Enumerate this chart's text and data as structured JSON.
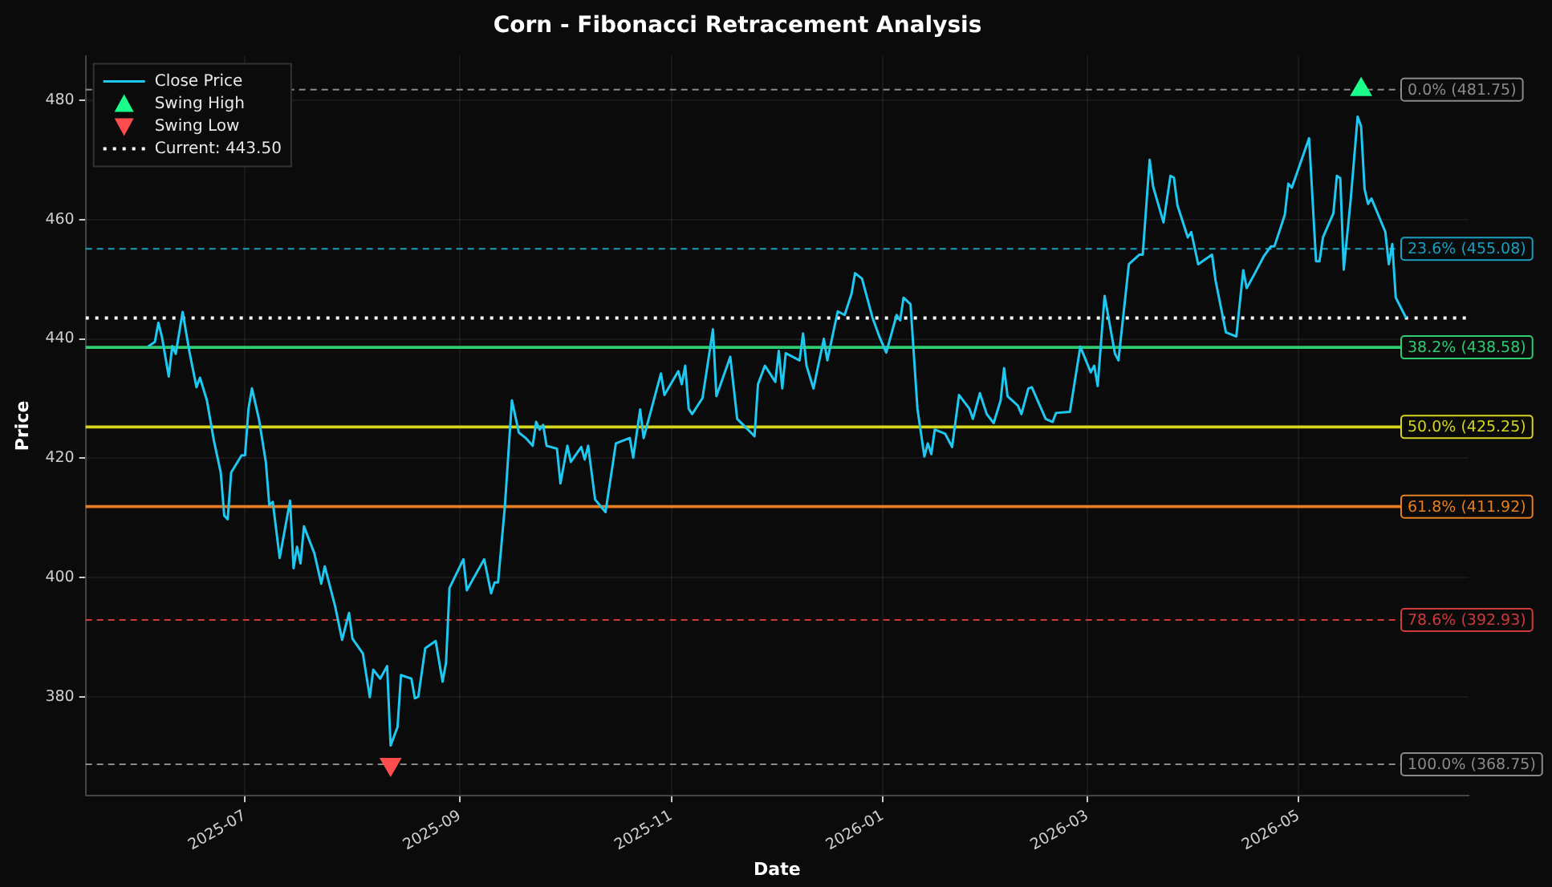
{
  "chart_data": {
    "type": "line",
    "title": "Corn - Fibonacci Retracement Analysis",
    "xlabel": "Date",
    "ylabel": "Price",
    "xlim": [
      "2025-05-16",
      "2026-06-19"
    ],
    "ylim": [
      363.5,
      487.4
    ],
    "xticks": [
      "2025-07",
      "2025-09",
      "2025-11",
      "2026-01",
      "2026-03",
      "2026-05"
    ],
    "yticks": [
      380,
      400,
      420,
      440,
      460,
      480
    ],
    "grid": true,
    "legend": "top left",
    "series": [
      {
        "name": "Close Price",
        "type": "line",
        "color": "#1ec8f0",
        "marker": "none",
        "line_style": "solid",
        "x": [
          "2025-06-03",
          "2025-06-05",
          "2025-06-06",
          "2025-06-07",
          "2025-06-09",
          "2025-06-10",
          "2025-06-11",
          "2025-06-13",
          "2025-06-15",
          "2025-06-17",
          "2025-06-18",
          "2025-06-20",
          "2025-06-22",
          "2025-06-24",
          "2025-06-25",
          "2025-06-26",
          "2025-06-27",
          "2025-06-30",
          "2025-07-01",
          "2025-07-02",
          "2025-07-03",
          "2025-07-05",
          "2025-07-07",
          "2025-07-08",
          "2025-07-09",
          "2025-07-11",
          "2025-07-14",
          "2025-07-15",
          "2025-07-16",
          "2025-07-17",
          "2025-07-18",
          "2025-07-21",
          "2025-07-23",
          "2025-07-24",
          "2025-07-27",
          "2025-07-29",
          "2025-07-31",
          "2025-08-01",
          "2025-08-04",
          "2025-08-06",
          "2025-08-07",
          "2025-08-09",
          "2025-08-11",
          "2025-08-12",
          "2025-08-14",
          "2025-08-15",
          "2025-08-18",
          "2025-08-19",
          "2025-08-20",
          "2025-08-22",
          "2025-08-25",
          "2025-08-27",
          "2025-08-28",
          "2025-08-29",
          "2025-09-02",
          "2025-09-03",
          "2025-09-05",
          "2025-09-08",
          "2025-09-10",
          "2025-09-11",
          "2025-09-12",
          "2025-09-14",
          "2025-09-16",
          "2025-09-18",
          "2025-09-20",
          "2025-09-22",
          "2025-09-23",
          "2025-09-24",
          "2025-09-25",
          "2025-09-26",
          "2025-09-29",
          "2025-09-30",
          "2025-10-02",
          "2025-10-03",
          "2025-10-06",
          "2025-10-07",
          "2025-10-08",
          "2025-10-10",
          "2025-10-13",
          "2025-10-16",
          "2025-10-20",
          "2025-10-21",
          "2025-10-23",
          "2025-10-24",
          "2025-10-29",
          "2025-10-30",
          "2025-11-03",
          "2025-11-04",
          "2025-11-05",
          "2025-11-06",
          "2025-11-07",
          "2025-11-10",
          "2025-11-13",
          "2025-11-14",
          "2025-11-18",
          "2025-11-20",
          "2025-11-25",
          "2025-11-26",
          "2025-11-28",
          "2025-12-01",
          "2025-12-02",
          "2025-12-03",
          "2025-12-04",
          "2025-12-08",
          "2025-12-09",
          "2025-12-10",
          "2025-12-12",
          "2025-12-15",
          "2025-12-16",
          "2025-12-19",
          "2025-12-21",
          "2025-12-23",
          "2025-12-24",
          "2025-12-26",
          "2025-12-29",
          "2025-12-31",
          "2026-01-02",
          "2026-01-05",
          "2026-01-06",
          "2026-01-07",
          "2026-01-09",
          "2026-01-11",
          "2026-01-13",
          "2026-01-14",
          "2026-01-15",
          "2026-01-16",
          "2026-01-19",
          "2026-01-21",
          "2026-01-23",
          "2026-01-26",
          "2026-01-27",
          "2026-01-29",
          "2026-01-31",
          "2026-02-02",
          "2026-02-04",
          "2026-02-05",
          "2026-02-06",
          "2026-02-09",
          "2026-02-10",
          "2026-02-12",
          "2026-02-13",
          "2026-02-17",
          "2026-02-19",
          "2026-02-20",
          "2026-02-24",
          "2026-02-27",
          "2026-03-02",
          "2026-03-03",
          "2026-03-04",
          "2026-03-06",
          "2026-03-09",
          "2026-03-10",
          "2026-03-13",
          "2026-03-16",
          "2026-03-17",
          "2026-03-19",
          "2026-03-20",
          "2026-03-23",
          "2026-03-25",
          "2026-03-26",
          "2026-03-27",
          "2026-03-30",
          "2026-03-31",
          "2026-04-02",
          "2026-04-06",
          "2026-04-07",
          "2026-04-10",
          "2026-04-13",
          "2026-04-15",
          "2026-04-16",
          "2026-04-18",
          "2026-04-21",
          "2026-04-23",
          "2026-04-24",
          "2026-04-27",
          "2026-04-28",
          "2026-04-29",
          "2026-05-04",
          "2026-05-06",
          "2026-05-07",
          "2026-05-08",
          "2026-05-11",
          "2026-05-12",
          "2026-05-13",
          "2026-05-14",
          "2026-05-16",
          "2026-05-18",
          "2026-05-19",
          "2026-05-20",
          "2026-05-21",
          "2026-05-22",
          "2026-05-26",
          "2026-05-27",
          "2026-05-28",
          "2026-05-29",
          "2026-06-01"
        ],
        "values": [
          438.7,
          439.5,
          442.7,
          440.4,
          433.7,
          438.8,
          437.5,
          444.5,
          437.7,
          431.9,
          433.5,
          429.7,
          423,
          417.6,
          410.4,
          409.8,
          417.6,
          420.5,
          420.5,
          428.3,
          431.7,
          426.6,
          419.4,
          412.2,
          412.7,
          403.3,
          412.9,
          401.6,
          405.2,
          402.4,
          408.6,
          404.1,
          399,
          401.9,
          395.2,
          389.6,
          394.1,
          389.8,
          387.3,
          380,
          384.6,
          383.1,
          385.2,
          371.9,
          375,
          383.7,
          383.1,
          379.8,
          380.1,
          388.2,
          389.4,
          382.6,
          385.8,
          398.3,
          403.1,
          397.9,
          400,
          403.1,
          397.4,
          399.2,
          399.2,
          412.2,
          429.7,
          424.3,
          423.4,
          422.1,
          426.1,
          424.8,
          425.6,
          422.1,
          421.6,
          415.8,
          422.1,
          419.4,
          421.9,
          419.8,
          422.1,
          413.1,
          411,
          422.5,
          423.4,
          420.1,
          428.2,
          423.4,
          434.2,
          430.6,
          434.6,
          432.4,
          435.5,
          428.3,
          427.4,
          430.1,
          441.6,
          430.4,
          437,
          426.6,
          423.7,
          432.4,
          435.5,
          432.8,
          438,
          431.7,
          437.6,
          436.4,
          440.9,
          435.5,
          431.7,
          440,
          436.4,
          444.6,
          444,
          447.6,
          451,
          450.1,
          443.6,
          440.4,
          437.7,
          444,
          443.1,
          446.9,
          445.8,
          428.3,
          420.3,
          422.5,
          420.7,
          424.8,
          424.1,
          421.9,
          430.6,
          428.3,
          426.6,
          430.9,
          427.4,
          425.9,
          429.7,
          435.1,
          430.4,
          428.8,
          427.4,
          431.7,
          431.9,
          426.6,
          426.1,
          427.6,
          427.8,
          438.7,
          434.4,
          435.5,
          432.1,
          447.2,
          437.5,
          436.4,
          452.5,
          454.1,
          454.1,
          470,
          465.5,
          459.5,
          467.3,
          467,
          462.4,
          457,
          457.9,
          452.5,
          454.1,
          449.8,
          441.1,
          440.4,
          451.5,
          448.5,
          450.6,
          453.9,
          455.5,
          455.5,
          460.8,
          466,
          465.3,
          473.6,
          453,
          453,
          457,
          461,
          467.3,
          466.9,
          451.6,
          463.3,
          477.2,
          475.6,
          465.1,
          462.6,
          463.5,
          457.9,
          452.5,
          455.9,
          446.9,
          443.5
        ]
      },
      {
        "name": "Swing High",
        "type": "scatter",
        "color": "#1aff8c",
        "marker": "triangle",
        "x": [
          "2026-05-19"
        ],
        "values": [
          481.75
        ]
      },
      {
        "name": "Swing Low",
        "type": "scatter",
        "color": "#ff4d4d",
        "marker": "triangle-down",
        "x": [
          "2025-08-12"
        ],
        "values": [
          368.75
        ]
      },
      {
        "name": "Current: 443.50",
        "type": "line",
        "color": "#ffffff",
        "marker": "none",
        "line_style": "dotted",
        "x": [
          "2025-05-16",
          "2026-06-19"
        ],
        "values": [
          443.5,
          443.5
        ]
      }
    ],
    "ref_lines": [
      {
        "axis": "y",
        "value": 481.75,
        "label": "0.0% (481.75)",
        "color": "#8a8a8a",
        "line_style": "dashed"
      },
      {
        "axis": "y",
        "value": 455.08,
        "label": "23.6% (455.08)",
        "color": "#1a9fc0",
        "line_style": "dashed"
      },
      {
        "axis": "y",
        "value": 438.58,
        "label": "38.2% (438.58)",
        "color": "#2ecc71",
        "line_style": "solid"
      },
      {
        "axis": "y",
        "value": 425.25,
        "label": "50.0% (425.25)",
        "color": "#d4d41c",
        "line_style": "solid"
      },
      {
        "axis": "y",
        "value": 411.92,
        "label": "61.8% (411.92)",
        "color": "#e67e22",
        "line_style": "solid"
      },
      {
        "axis": "y",
        "value": 392.93,
        "label": "78.6% (392.93)",
        "color": "#d03a3a",
        "line_style": "dashed"
      },
      {
        "axis": "y",
        "value": 368.75,
        "label": "100.0% (368.75)",
        "color": "#8a8a8a",
        "line_style": "dashed"
      }
    ]
  }
}
